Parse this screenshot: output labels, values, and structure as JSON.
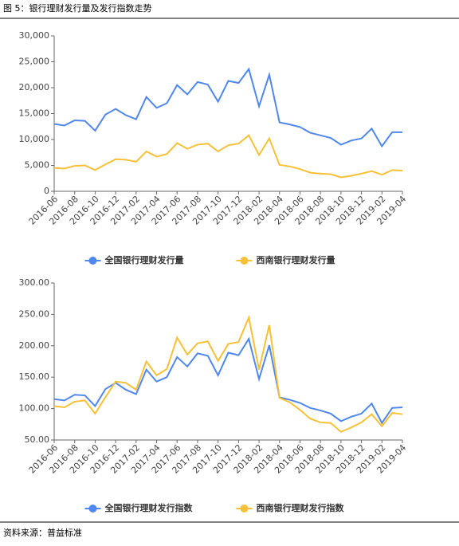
{
  "title": "图 5：银行理财发行量及发行指数走势",
  "source": "资料来源：普益标准",
  "chart_data": [
    {
      "type": "line",
      "categories": [
        "2016-06",
        null,
        "2016-08",
        null,
        "2016-10",
        null,
        "2016-12",
        null,
        "2017-02",
        null,
        "2017-04",
        null,
        "2017-06",
        null,
        "2017-08",
        null,
        "2017-10",
        null,
        "2017-12",
        null,
        "2018-02",
        null,
        "2018-04",
        null,
        "2018-06",
        null,
        "2018-08",
        null,
        "2018-10",
        null,
        "2018-12",
        null,
        "2019-02",
        null,
        "2019-04"
      ],
      "series": [
        {
          "name": "全国银行理财发行量",
          "color": "#5087ec",
          "values": [
            13000,
            12700,
            13700,
            13600,
            11700,
            14800,
            15900,
            14700,
            13900,
            18200,
            16100,
            17000,
            20500,
            18700,
            21100,
            20600,
            17300,
            21300,
            20900,
            23600,
            16400,
            22500,
            13300,
            12900,
            12400,
            11300,
            10800,
            10300,
            9000,
            9800,
            10200,
            12100,
            8700,
            11400,
            11400
          ]
        },
        {
          "name": "西南银行理财发行量",
          "color": "#f7c137",
          "values": [
            4500,
            4400,
            4900,
            5000,
            4100,
            5200,
            6200,
            6100,
            5700,
            7700,
            6700,
            7200,
            9300,
            8200,
            9000,
            9200,
            7700,
            8900,
            9200,
            10800,
            7000,
            10200,
            5100,
            4800,
            4300,
            3600,
            3400,
            3300,
            2700,
            3000,
            3400,
            3900,
            3200,
            4100,
            4000
          ]
        }
      ],
      "ylim": [
        0,
        30000
      ],
      "yticks": [
        0,
        {
          "value": 5000,
          "label": "5,000"
        },
        {
          "value": 10000,
          "label": "10,000"
        },
        {
          "value": 15000,
          "label": "15,000"
        },
        {
          "value": 20000,
          "label": "20,000"
        },
        {
          "value": 25000,
          "label": "25,000"
        },
        {
          "value": 30000,
          "label": "30,000"
        }
      ],
      "grid": false
    },
    {
      "type": "line",
      "categories": [
        "2016-06",
        null,
        "2016-08",
        null,
        "2016-10",
        null,
        "2016-12",
        null,
        "2017-02",
        null,
        "2017-04",
        null,
        "2017-06",
        null,
        "2017-08",
        null,
        "2017-10",
        null,
        "2017-12",
        null,
        "2018-02",
        null,
        "2018-04",
        null,
        "2018-06",
        null,
        "2018-08",
        null,
        "2018-10",
        null,
        "2018-12",
        null,
        "2019-02",
        null,
        "2019-04"
      ],
      "series": [
        {
          "name": "全国银行理财发行指数",
          "color": "#5087ec",
          "values": [
            115,
            113,
            122,
            121,
            104,
            131,
            141,
            130,
            123,
            162,
            143,
            150,
            182,
            167,
            188,
            184,
            153,
            189,
            185,
            211,
            147,
            201,
            118,
            114,
            109,
            101,
            97,
            92,
            80,
            87,
            92,
            108,
            77,
            101,
            102
          ]
        },
        {
          "name": "西南银行理财发行指数",
          "color": "#f7c137",
          "values": [
            104,
            102,
            111,
            113,
            92,
            118,
            143,
            141,
            130,
            175,
            153,
            163,
            213,
            186,
            204,
            207,
            176,
            203,
            206,
            245,
            162,
            233,
            117,
            110,
            98,
            84,
            78,
            77,
            63,
            70,
            78,
            91,
            72,
            93,
            91
          ]
        }
      ],
      "ylim": [
        50,
        300
      ],
      "yticks": [
        {
          "value": 50,
          "label": "50.00"
        },
        {
          "value": 100,
          "label": "100.00"
        },
        {
          "value": 150,
          "label": "150.00"
        },
        {
          "value": 200,
          "label": "200.00"
        },
        {
          "value": 250,
          "label": "250.00"
        },
        {
          "value": 300,
          "label": "300.00"
        }
      ],
      "grid": false
    }
  ]
}
